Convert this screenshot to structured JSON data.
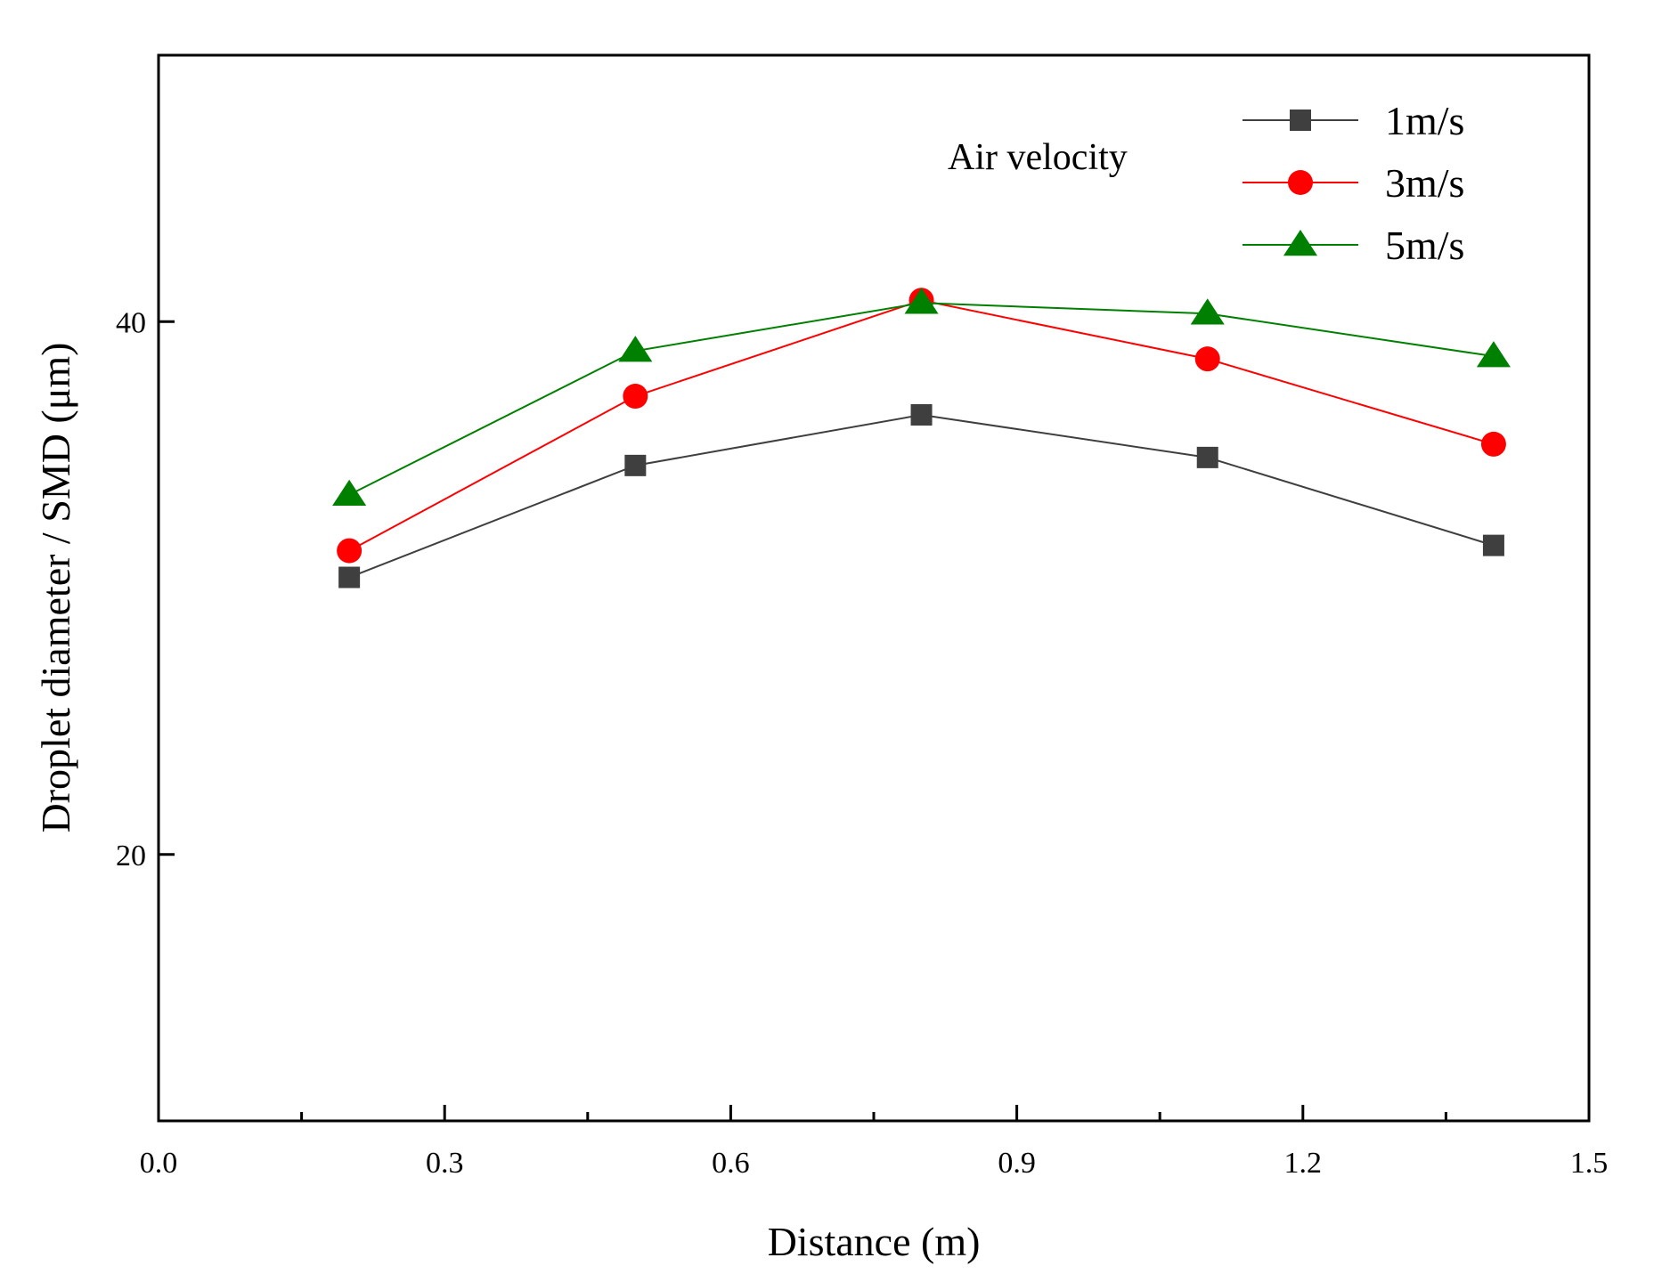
{
  "chart_data": {
    "type": "line",
    "title": "",
    "xlabel": "Distance (m)",
    "ylabel": "Droplet diameter / SMD (μm)",
    "xlim": [
      0.0,
      1.5
    ],
    "ylim": [
      10,
      50
    ],
    "x_ticks": [
      0.0,
      0.3,
      0.6,
      0.9,
      1.2,
      1.5
    ],
    "x_tick_labels": [
      "0.0",
      "0.3",
      "0.6",
      "0.9",
      "1.2",
      "1.5"
    ],
    "y_ticks": [
      20,
      40
    ],
    "y_tick_labels": [
      "20",
      "40"
    ],
    "grid": false,
    "legend_title": "Air velocity",
    "legend_position": "top-right",
    "x": [
      0.2,
      0.5,
      0.8,
      1.1,
      1.4
    ],
    "series": [
      {
        "name": "1m/s",
        "color": "#3f3f3f",
        "marker": "square",
        "values": [
          30.4,
          34.6,
          36.5,
          34.9,
          31.6
        ]
      },
      {
        "name": "3m/s",
        "color": "#ff0000",
        "marker": "circle",
        "values": [
          31.4,
          37.2,
          40.8,
          38.6,
          35.4
        ]
      },
      {
        "name": "5m/s",
        "color": "#008000",
        "marker": "triangle",
        "values": [
          33.5,
          38.9,
          40.7,
          40.3,
          38.7
        ]
      }
    ]
  }
}
